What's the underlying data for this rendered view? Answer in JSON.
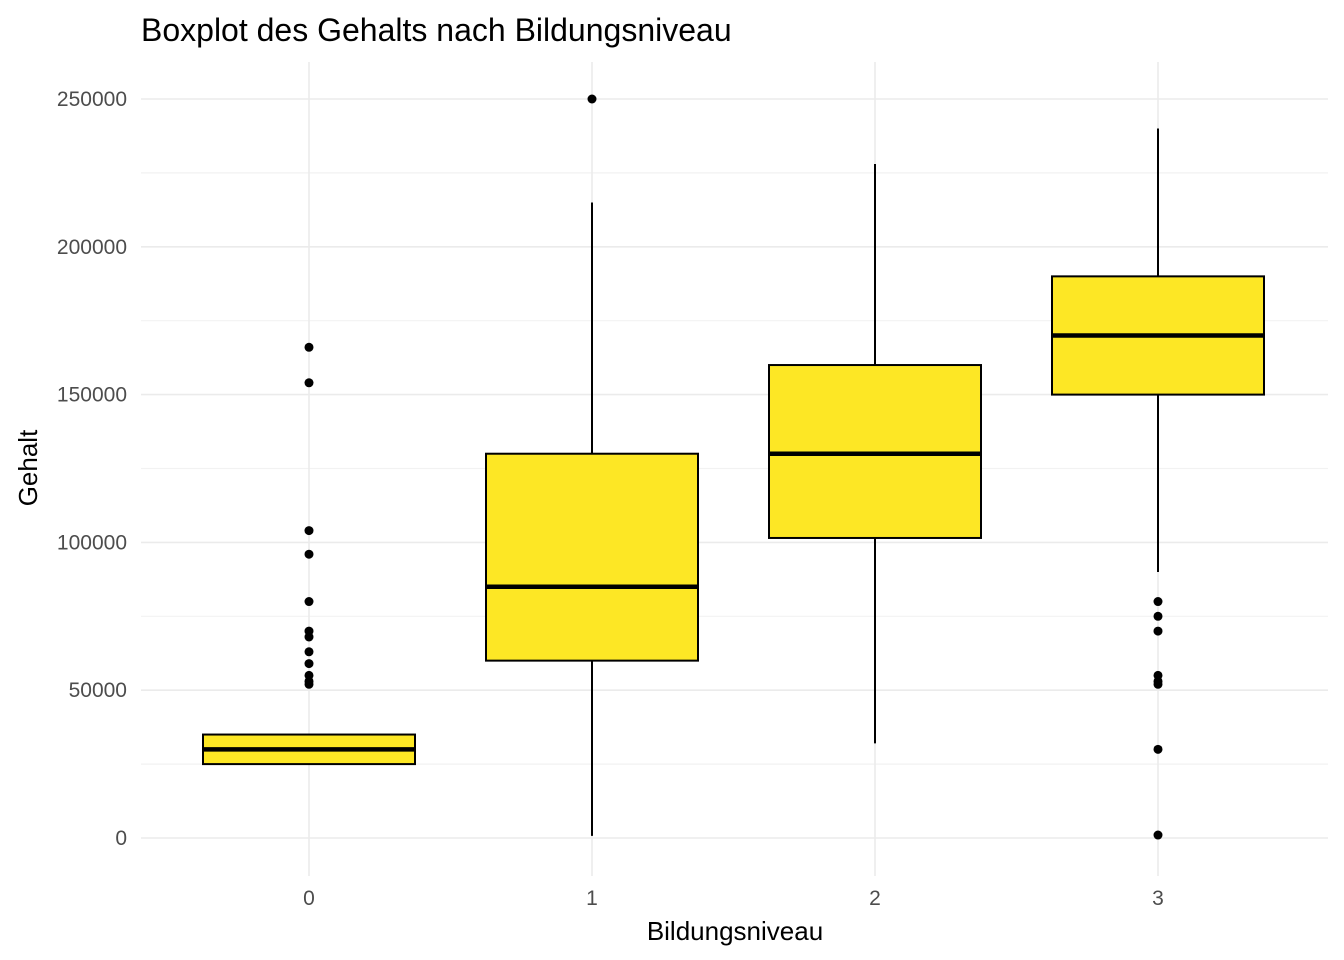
{
  "chart_data": {
    "type": "boxplot",
    "title": "Boxplot des Gehalts nach Bildungsniveau",
    "xlabel": "Bildungsniveau",
    "ylabel": "Gehalt",
    "categories": [
      "0",
      "1",
      "2",
      "3"
    ],
    "ylim": [
      -5000,
      264000
    ],
    "y_ticks": [
      0,
      50000,
      100000,
      150000,
      200000,
      250000
    ],
    "y_tick_labels": [
      "0",
      "50000",
      "100000",
      "150000",
      "200000",
      "250000"
    ],
    "grid": true,
    "legend": "none",
    "fill_color": "#FDE725",
    "outline_color": "#000000",
    "grid_color": "#EBEBEB",
    "boxes": [
      {
        "category": "0",
        "min": 25000,
        "q1": 25000,
        "median": 30000,
        "q3": 35000,
        "max": 35000,
        "outliers": [
          166000,
          154000,
          104000,
          96000,
          80000,
          70000,
          68000,
          63000,
          59000,
          55000,
          53000,
          52000
        ]
      },
      {
        "category": "1",
        "min": 700,
        "q1": 60000,
        "median": 85000,
        "q3": 130000,
        "max": 215000,
        "outliers": [
          250000
        ]
      },
      {
        "category": "2",
        "min": 32000,
        "q1": 101500,
        "median": 130000,
        "q3": 160000,
        "max": 228000,
        "outliers": []
      },
      {
        "category": "3",
        "min": 90000,
        "q1": 150000,
        "median": 170000,
        "q3": 190000,
        "max": 240000,
        "outliers": [
          80000,
          75000,
          70000,
          55000,
          53000,
          52000,
          30000,
          1000
        ]
      }
    ]
  }
}
